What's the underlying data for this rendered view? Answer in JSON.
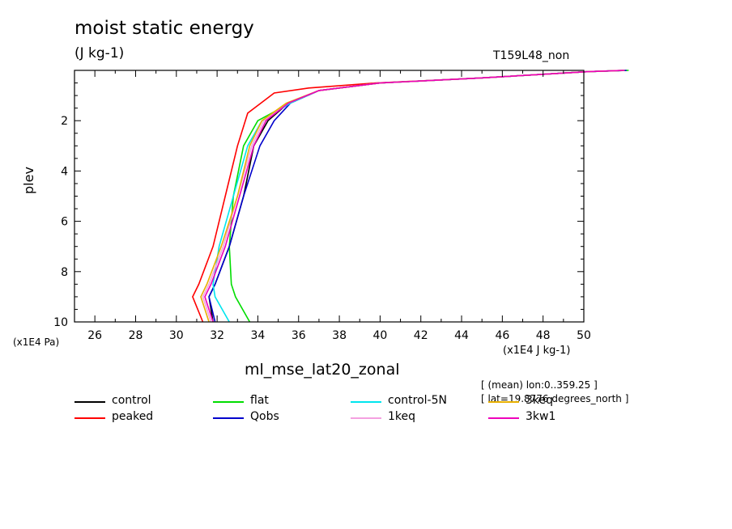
{
  "header": {
    "title": "moist static energy",
    "units": "(J kg-1)",
    "run_name": "T159L48_non",
    "xaxis_label": "ml_mse_lat20_zonal",
    "meta_line1": "[ (mean) lon:0..359.25 ]",
    "meta_line2": "[ lat=19.8776 degrees_north ]"
  },
  "chart_data": {
    "type": "line",
    "title": "moist static energy",
    "xlabel": "ml_mse_lat20_zonal",
    "ylabel": "plev",
    "x_unit_label": "(x1E4 J kg-1)",
    "y_unit_label": "(x1E4 Pa)",
    "xlim": [
      25,
      50
    ],
    "ylim": [
      10,
      0
    ],
    "x_ticks": [
      26,
      28,
      30,
      32,
      34,
      36,
      38,
      40,
      42,
      44,
      46,
      48,
      50
    ],
    "y_ticks": [
      2,
      4,
      6,
      8,
      10
    ],
    "y_inverted": true,
    "series": [
      {
        "name": "control",
        "color": "#000000",
        "x": [
          31.8,
          31.6,
          31.9,
          32.6,
          33.3,
          33.8,
          34.5,
          35.5,
          37.0,
          40.0,
          45.0,
          50.2,
          52.0
        ],
        "y": [
          10,
          9.0,
          8.5,
          7.0,
          5.0,
          3.0,
          2.0,
          1.3,
          0.8,
          0.5,
          0.3,
          0.05,
          0.0
        ]
      },
      {
        "name": "peaked",
        "color": "#ff0000",
        "x": [
          31.3,
          30.8,
          31.1,
          31.8,
          32.4,
          33.0,
          33.5,
          34.8,
          36.5,
          39.8,
          45.0,
          50.2,
          52.0
        ],
        "y": [
          10,
          9.0,
          8.5,
          7.0,
          5.0,
          3.0,
          1.7,
          0.9,
          0.7,
          0.5,
          0.3,
          0.05,
          0.0
        ]
      },
      {
        "name": "flat",
        "color": "#00dd00",
        "x": [
          33.6,
          32.9,
          32.7,
          32.6,
          32.8,
          33.3,
          34.0,
          35.6,
          37.0,
          40.0,
          45.0,
          50.2,
          52.2
        ],
        "y": [
          10,
          9.0,
          8.5,
          7.0,
          5.0,
          3.0,
          2.0,
          1.3,
          0.8,
          0.5,
          0.3,
          0.05,
          0.0
        ]
      },
      {
        "name": "Qobs",
        "color": "#0000cc",
        "x": [
          31.9,
          31.6,
          31.9,
          32.6,
          33.3,
          34.1,
          34.8,
          35.6,
          37.0,
          40.0,
          45.0,
          50.2,
          52.1
        ],
        "y": [
          10,
          9.0,
          8.5,
          7.0,
          5.0,
          3.0,
          2.0,
          1.3,
          0.8,
          0.5,
          0.3,
          0.05,
          0.0
        ]
      },
      {
        "name": "control-5N",
        "color": "#00e5ee",
        "x": [
          32.6,
          31.9,
          31.8,
          32.1,
          32.8,
          33.5,
          34.2,
          35.6,
          37.0,
          40.0,
          45.0,
          50.2,
          52.0
        ],
        "y": [
          10,
          9.0,
          8.5,
          7.0,
          5.0,
          3.0,
          2.0,
          1.3,
          0.8,
          0.5,
          0.3,
          0.05,
          0.0
        ]
      },
      {
        "name": "1keq",
        "color": "#f4a0e0",
        "x": [
          31.7,
          31.3,
          31.6,
          32.3,
          33.0,
          33.7,
          34.3,
          35.5,
          37.0,
          40.0,
          45.0,
          50.2,
          52.0
        ],
        "y": [
          10,
          9.0,
          8.5,
          7.0,
          5.0,
          3.0,
          2.0,
          1.3,
          0.8,
          0.5,
          0.3,
          0.05,
          0.0
        ]
      },
      {
        "name": "3keq",
        "color": "#e8b000",
        "x": [
          31.6,
          31.2,
          31.5,
          32.2,
          33.0,
          33.6,
          34.2,
          35.4,
          37.0,
          40.0,
          45.0,
          50.2,
          52.0
        ],
        "y": [
          10,
          9.0,
          8.5,
          7.0,
          5.0,
          3.0,
          2.0,
          1.3,
          0.8,
          0.5,
          0.3,
          0.05,
          0.0
        ]
      },
      {
        "name": "3kw1",
        "color": "#ee00bb",
        "x": [
          31.8,
          31.4,
          31.7,
          32.4,
          33.1,
          33.8,
          34.4,
          35.5,
          37.0,
          40.0,
          45.0,
          50.2,
          52.0
        ],
        "y": [
          10,
          9.0,
          8.5,
          7.0,
          5.0,
          3.0,
          2.0,
          1.3,
          0.8,
          0.5,
          0.3,
          0.05,
          0.0
        ]
      }
    ]
  }
}
